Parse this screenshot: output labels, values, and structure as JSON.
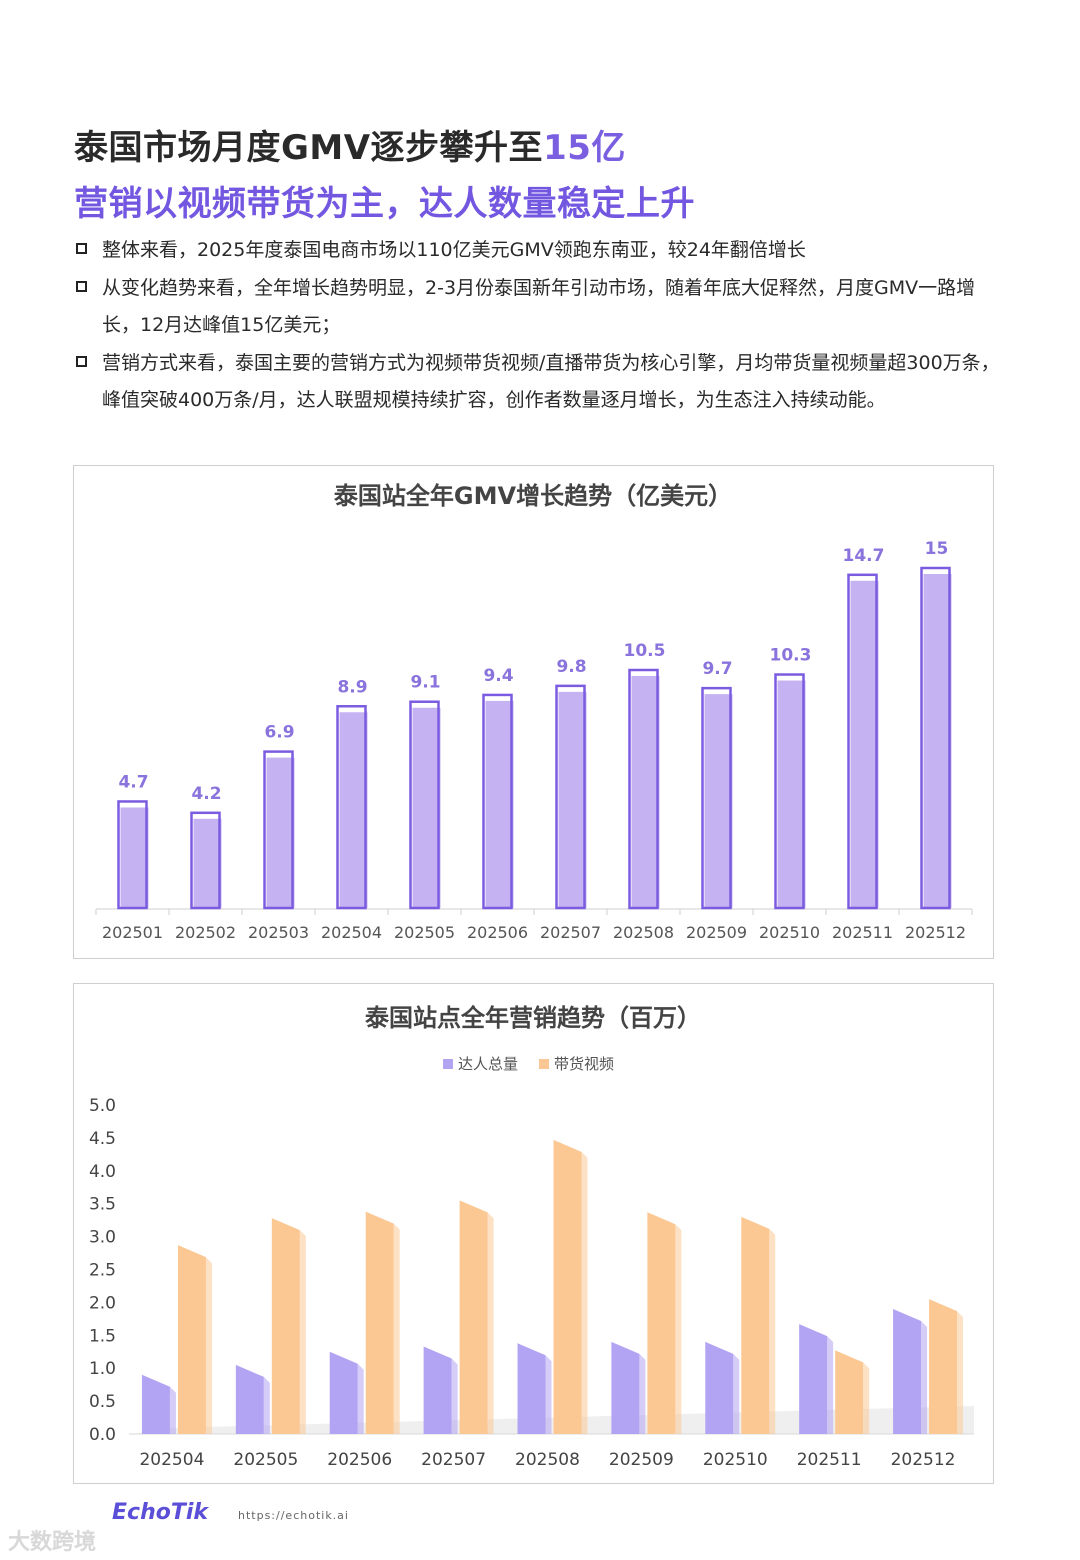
{
  "header": {
    "title_main": "泰国市场月度GMV逐步攀升至",
    "title_highlight": "15亿",
    "subtitle": "营销以视频带货为主，达人数量稳定上升"
  },
  "bullets": [
    {
      "text": "整体来看，2025年度泰国电商市场以110亿美元GMV领跑东南亚，较24年翻倍增长"
    },
    {
      "text": "从变化趋势来看，全年增长趋势明显，2-3月份泰国新年引动市场，随着年底大促释然，月度GMV一路增长，12月达峰值15亿美元；"
    },
    {
      "text": "营销方式来看，泰国主要的营销方式为视频带货视频/直播带货为核心引擎，月均带货量视频量超300万条，峰值突破400万条/月，达人联盟规模持续扩容，创作者数量逐月增长，为生态注入持续动能。"
    }
  ],
  "chart_data": [
    {
      "type": "bar",
      "title": "泰国站全年GMV增长趋势（亿美元）",
      "categories": [
        "202501",
        "202502",
        "202503",
        "202504",
        "202505",
        "202506",
        "202507",
        "202508",
        "202509",
        "202510",
        "202511",
        "202512"
      ],
      "values": [
        4.7,
        4.2,
        6.9,
        8.9,
        9.1,
        9.4,
        9.8,
        10.5,
        9.7,
        10.3,
        14.7,
        15
      ],
      "data_labels": [
        "4.7",
        "4.2",
        "6.9",
        "8.9",
        "9.1",
        "9.4",
        "9.8",
        "10.5",
        "9.7",
        "10.3",
        "14.7",
        "15"
      ],
      "ylim": [
        0,
        16
      ],
      "grid": false,
      "colors": {
        "fill": "#c4b2f2",
        "outline": "#7b5ce0",
        "label": "#8a73dc"
      }
    },
    {
      "type": "bar",
      "title": "泰国站点全年营销趋势（百万）",
      "categories": [
        "202504",
        "202505",
        "202506",
        "202507",
        "202508",
        "202509",
        "202510",
        "202511",
        "202512"
      ],
      "series": [
        {
          "name": "达人总量",
          "values": [
            0.9,
            1.05,
            1.25,
            1.33,
            1.38,
            1.4,
            1.4,
            1.67,
            1.9
          ],
          "color": "#b3a4f3"
        },
        {
          "name": "带货视频",
          "values": [
            2.87,
            3.28,
            3.38,
            3.55,
            4.47,
            3.37,
            3.3,
            1.27,
            2.05
          ],
          "color": "#fbc894"
        }
      ],
      "yticks": [
        "0.0",
        "0.5",
        "1.0",
        "1.5",
        "2.0",
        "2.5",
        "3.0",
        "3.5",
        "4.0",
        "4.5",
        "5.0"
      ],
      "ylim": [
        0,
        5
      ],
      "legend": "top-center",
      "grid": false
    }
  ],
  "footer": {
    "logo": "EchoTik",
    "url": "https://echotik.ai",
    "watermark": "大数跨境"
  }
}
